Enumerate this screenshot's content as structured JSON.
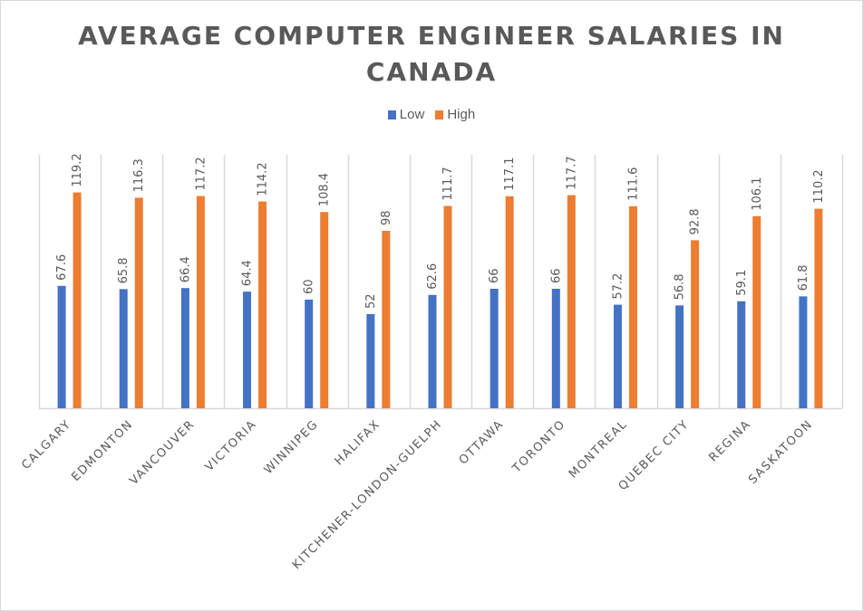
{
  "chart_data": {
    "type": "bar",
    "title": "AVERAGE COMPUTER ENGINEER SALARIES IN CANADA",
    "xlabel": "",
    "ylabel": "",
    "ylim": [
      0,
      140
    ],
    "grid": "vertical category separators",
    "legend": "top-center",
    "categories": [
      "CALGARY",
      "EDMONTON",
      "VANCOUVER",
      "VICTORIA",
      "WINNIPEG",
      "HALIFAX",
      "KITCHENER-LONDON-GUELPH",
      "OTTAWA",
      "TORONTO",
      "MONTREAL",
      "QUEBEC CITY",
      "REGINA",
      "SASKATOON"
    ],
    "series": [
      {
        "name": "Low",
        "color": "#4472c4",
        "values": [
          67.6,
          65.8,
          66.4,
          64.4,
          60,
          52,
          62.6,
          66,
          66,
          57.2,
          56.8,
          59.1,
          61.8
        ]
      },
      {
        "name": "High",
        "color": "#ed7d31",
        "values": [
          119.2,
          116.3,
          117.2,
          114.2,
          108.4,
          98,
          111.7,
          117.1,
          117.7,
          111.6,
          92.8,
          106.1,
          110.2
        ]
      }
    ]
  }
}
